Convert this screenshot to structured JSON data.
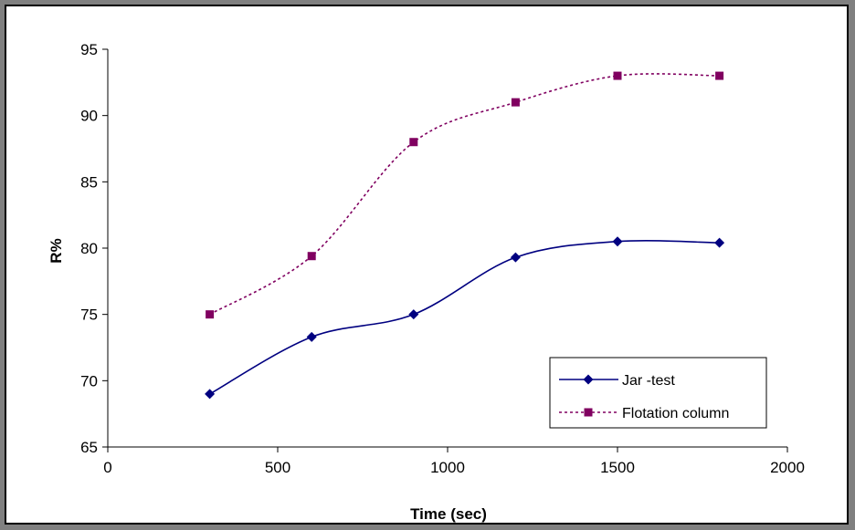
{
  "chart_data": {
    "type": "line",
    "xlabel": "Time (sec)",
    "ylabel": "R%",
    "xlim": [
      0,
      2000
    ],
    "ylim": [
      65,
      95
    ],
    "x_ticks": [
      "0",
      "500",
      "1000",
      "1500",
      "2000"
    ],
    "y_ticks": [
      "65",
      "70",
      "75",
      "80",
      "85",
      "90",
      "95"
    ],
    "grid": false,
    "smooth": true,
    "legend_position": "bottom-right",
    "x": [
      300,
      600,
      900,
      1200,
      1500,
      1800
    ],
    "series": [
      {
        "name": "Jar -test",
        "values": [
          69.0,
          73.3,
          75.0,
          79.3,
          80.5,
          80.4
        ],
        "color": "#000080",
        "marker": "diamond",
        "line_style": "solid"
      },
      {
        "name": "Flotation column",
        "values": [
          75.0,
          79.4,
          88.0,
          91.0,
          93.0,
          93.0
        ],
        "color": "#800060",
        "marker": "square",
        "line_style": "dashed"
      }
    ]
  }
}
